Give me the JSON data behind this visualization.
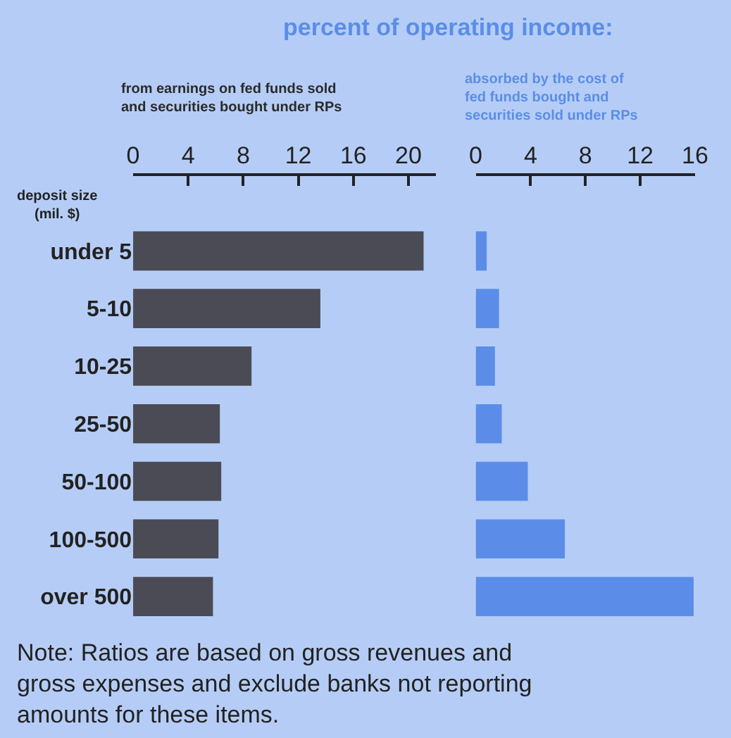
{
  "chart_data": [
    {
      "type": "bar",
      "orientation": "horizontal",
      "title": "percent of operating income:",
      "subtitle": "from earnings on fed funds sold and securities bought under RPs",
      "ylabel": "deposit size (mil. $)",
      "categories": [
        "under 5",
        "5-10",
        "10-25",
        "25-50",
        "50-100",
        "100-500",
        "over 500"
      ],
      "series": [
        {
          "color": "#4b4b55",
          "values": [
            21.1,
            13.6,
            8.6,
            6.3,
            6.4,
            6.2,
            5.8
          ]
        }
      ],
      "xlim": [
        0,
        22
      ],
      "xticks": [
        0,
        4,
        8,
        12,
        16,
        20
      ],
      "grid": false,
      "annotations": [
        "Note: Ratios are based on gross revenues and gross expenses and exclude banks not reporting amounts for these items."
      ]
    },
    {
      "type": "bar",
      "orientation": "horizontal",
      "subtitle": "absorbed by the cost of fed funds bought and securities sold under RPs",
      "categories": [
        "under 5",
        "5-10",
        "10-25",
        "25-50",
        "50-100",
        "100-500",
        "over 500"
      ],
      "series": [
        {
          "color": "#5b8de8",
          "values": [
            0.8,
            1.7,
            1.4,
            1.9,
            3.8,
            6.5,
            15.9
          ]
        }
      ],
      "xlim": [
        0,
        16
      ],
      "xticks": [
        0,
        4,
        8,
        12,
        16
      ],
      "tick_labels": "x",
      "grid": false
    }
  ]
}
